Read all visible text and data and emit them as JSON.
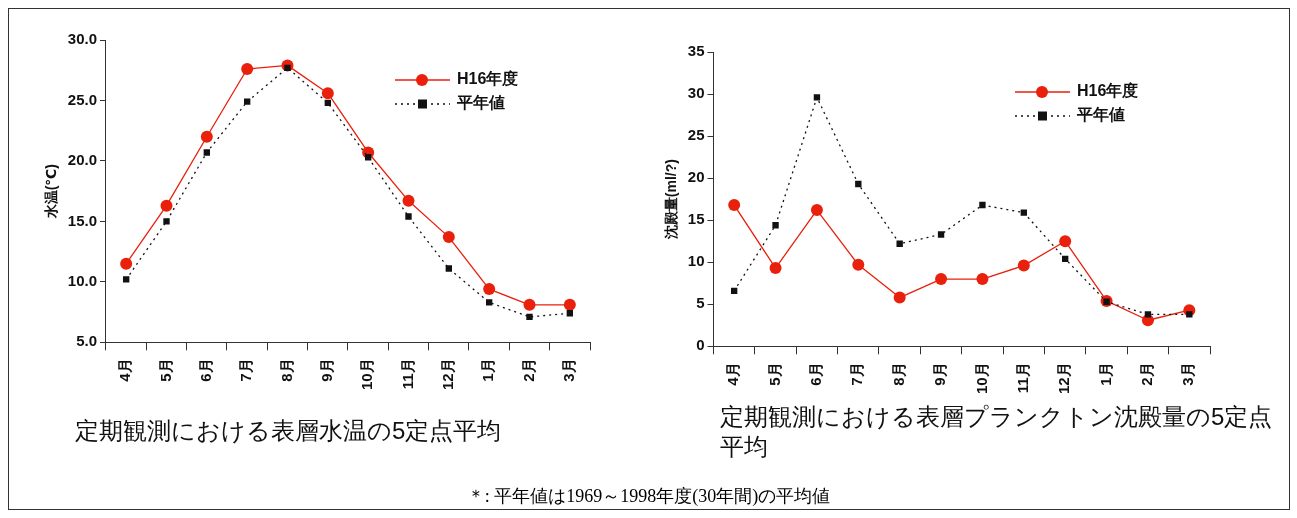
{
  "chart_data": [
    {
      "type": "line",
      "title": "定期観測における表層水温の5定点平均",
      "ylabel": "水温(℃)",
      "categories": [
        "4月",
        "5月",
        "6月",
        "7月",
        "8月",
        "9月",
        "10月",
        "11月",
        "12月",
        "1月",
        "2月",
        "3月"
      ],
      "ylim": [
        5,
        30
      ],
      "yticks": [
        {
          "value": 5,
          "label": "5.0"
        },
        {
          "value": 10,
          "label": "10.0"
        },
        {
          "value": 15,
          "label": "15.0"
        },
        {
          "value": 20,
          "label": "20.0"
        },
        {
          "value": 25,
          "label": "25.0"
        },
        {
          "value": 30,
          "label": "30.0"
        }
      ],
      "grid": false,
      "legend": "top right",
      "series": [
        {
          "name": "H16年度",
          "color": "#e8200c",
          "marker": "circle",
          "line_style": "solid",
          "values": [
            11.5,
            16.3,
            22.0,
            27.6,
            27.9,
            25.6,
            20.7,
            16.7,
            13.7,
            9.4,
            8.1,
            8.1
          ]
        },
        {
          "name": "平年値",
          "color": "#111111",
          "marker": "square",
          "line_style": "dotted",
          "values": [
            10.2,
            15.0,
            20.7,
            24.9,
            27.7,
            24.8,
            20.3,
            15.4,
            11.1,
            8.3,
            7.1,
            7.4
          ]
        }
      ]
    },
    {
      "type": "line",
      "title": "定期観測における表層プランクトン沈殿量の5定点平均",
      "ylabel": "沈殿量(ml/?)",
      "categories": [
        "4月",
        "5月",
        "6月",
        "7月",
        "8月",
        "9月",
        "10月",
        "11月",
        "12月",
        "1月",
        "2月",
        "3月"
      ],
      "ylim": [
        0,
        35
      ],
      "yticks": [
        0,
        5,
        10,
        15,
        20,
        25,
        30,
        35
      ],
      "grid": false,
      "legend": "top right",
      "annotations": [
        "＊: 平年値は1969～1998年度(30年間)の平均値"
      ],
      "series": [
        {
          "name": "H16年度",
          "color": "#e8200c",
          "marker": "circle",
          "line_style": "solid",
          "values": [
            16.8,
            9.3,
            16.2,
            9.7,
            5.8,
            8.0,
            8.0,
            9.6,
            12.5,
            5.4,
            3.1,
            4.3
          ]
        },
        {
          "name": "平年値",
          "color": "#111111",
          "marker": "square",
          "line_style": "dotted",
          "values": [
            6.6,
            14.4,
            29.6,
            19.3,
            12.2,
            13.3,
            16.8,
            15.9,
            10.4,
            5.3,
            3.8,
            3.8
          ]
        }
      ]
    }
  ]
}
